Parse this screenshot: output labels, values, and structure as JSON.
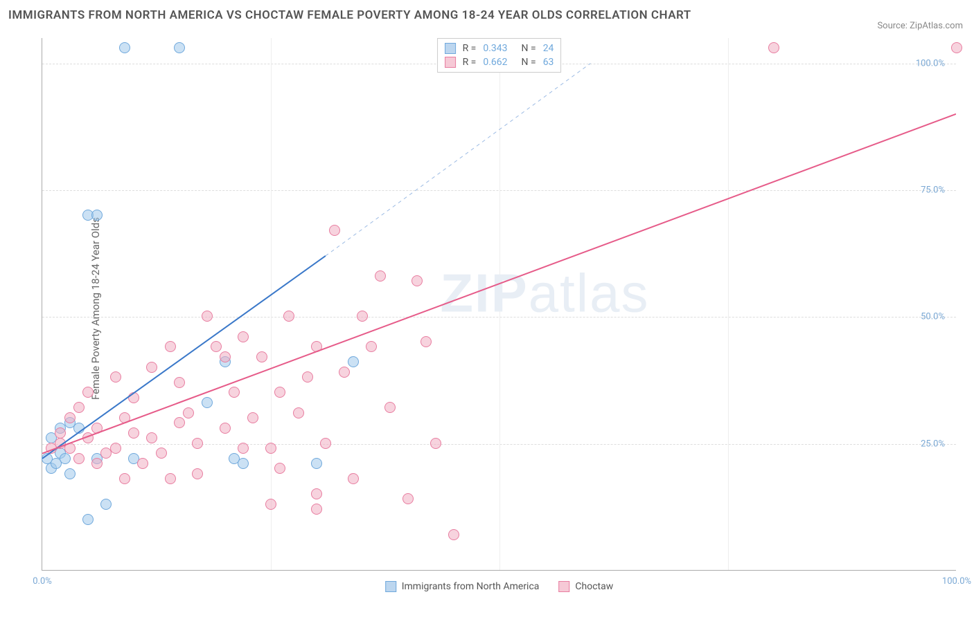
{
  "chart": {
    "type": "scatter",
    "title": "IMMIGRANTS FROM NORTH AMERICA VS CHOCTAW FEMALE POVERTY AMONG 18-24 YEAR OLDS CORRELATION CHART",
    "source_label": "Source:",
    "source_name": "ZipAtlas.com",
    "ylabel": "Female Poverty Among 18-24 Year Olds",
    "watermark_bold": "ZIP",
    "watermark_light": "atlas",
    "background_color": "#ffffff",
    "grid_color": "#dddddd",
    "axis_color": "#aaaaaa",
    "tick_color": "#7aa8d4",
    "xlim": [
      0,
      100
    ],
    "ylim": [
      0,
      105
    ],
    "xticks": [
      {
        "v": 0,
        "label": "0.0%"
      },
      {
        "v": 25,
        "label": ""
      },
      {
        "v": 50,
        "label": ""
      },
      {
        "v": 75,
        "label": ""
      },
      {
        "v": 100,
        "label": "100.0%"
      }
    ],
    "yticks": [
      {
        "v": 25,
        "label": "25.0%"
      },
      {
        "v": 50,
        "label": "50.0%"
      },
      {
        "v": 75,
        "label": "75.0%"
      },
      {
        "v": 100,
        "label": "100.0%"
      }
    ],
    "legend_top": {
      "rows": [
        {
          "swatch_fill": "#bcd6ef",
          "swatch_border": "#6fa8dc",
          "r_label": "R =",
          "r_value": "0.343",
          "n_label": "N =",
          "n_value": "24"
        },
        {
          "swatch_fill": "#f6c9d6",
          "swatch_border": "#e87da0",
          "r_label": "R =",
          "r_value": "0.662",
          "n_label": "N =",
          "n_value": "63"
        }
      ]
    },
    "legend_bottom": [
      {
        "swatch_fill": "#bcd6ef",
        "swatch_border": "#6fa8dc",
        "label": "Immigrants from North America"
      },
      {
        "swatch_fill": "#f6c9d6",
        "swatch_border": "#e87da0",
        "label": "Choctaw"
      }
    ],
    "series": [
      {
        "name": "Immigrants from North America",
        "marker_fill": "rgba(160,200,235,0.55)",
        "marker_border": "#6fa8dc",
        "marker_size": 16,
        "trend": {
          "x1": 0,
          "y1": 22,
          "x2": 31,
          "y2": 62,
          "dash_x2": 60,
          "dash_y2": 100,
          "color": "#3a78c9",
          "width": 2
        },
        "points": [
          [
            0.5,
            22
          ],
          [
            1,
            20
          ],
          [
            1.5,
            21
          ],
          [
            2,
            23
          ],
          [
            2.5,
            22
          ],
          [
            3,
            19
          ],
          [
            1,
            26
          ],
          [
            2,
            28
          ],
          [
            3,
            29
          ],
          [
            4,
            28
          ],
          [
            5,
            70
          ],
          [
            6,
            70
          ],
          [
            5,
            10
          ],
          [
            7,
            13
          ],
          [
            10,
            22
          ],
          [
            9,
            103
          ],
          [
            15,
            103
          ],
          [
            18,
            33
          ],
          [
            20,
            41
          ],
          [
            21,
            22
          ],
          [
            22,
            21
          ],
          [
            34,
            41
          ],
          [
            30,
            21
          ],
          [
            6,
            22
          ]
        ]
      },
      {
        "name": "Choctaw",
        "marker_fill": "rgba(240,175,195,0.55)",
        "marker_border": "#e87da0",
        "marker_size": 16,
        "trend": {
          "x1": 0,
          "y1": 23,
          "x2": 100,
          "y2": 90,
          "color": "#e65b89",
          "width": 2
        },
        "points": [
          [
            1,
            24
          ],
          [
            2,
            25
          ],
          [
            2,
            27
          ],
          [
            3,
            24
          ],
          [
            3,
            30
          ],
          [
            4,
            32
          ],
          [
            4,
            22
          ],
          [
            5,
            26
          ],
          [
            5,
            35
          ],
          [
            6,
            28
          ],
          [
            6,
            21
          ],
          [
            7,
            23
          ],
          [
            8,
            24
          ],
          [
            8,
            38
          ],
          [
            9,
            30
          ],
          [
            10,
            27
          ],
          [
            10,
            34
          ],
          [
            11,
            21
          ],
          [
            12,
            26
          ],
          [
            12,
            40
          ],
          [
            13,
            23
          ],
          [
            14,
            18
          ],
          [
            15,
            29
          ],
          [
            15,
            37
          ],
          [
            16,
            31
          ],
          [
            17,
            25
          ],
          [
            18,
            50
          ],
          [
            19,
            44
          ],
          [
            20,
            42
          ],
          [
            20,
            28
          ],
          [
            21,
            35
          ],
          [
            22,
            46
          ],
          [
            22,
            24
          ],
          [
            23,
            30
          ],
          [
            24,
            42
          ],
          [
            25,
            13
          ],
          [
            25,
            24
          ],
          [
            26,
            35
          ],
          [
            27,
            50
          ],
          [
            28,
            31
          ],
          [
            29,
            38
          ],
          [
            30,
            15
          ],
          [
            30,
            44
          ],
          [
            31,
            25
          ],
          [
            32,
            67
          ],
          [
            33,
            39
          ],
          [
            34,
            18
          ],
          [
            35,
            50
          ],
          [
            36,
            44
          ],
          [
            37,
            58
          ],
          [
            38,
            32
          ],
          [
            40,
            14
          ],
          [
            41,
            57
          ],
          [
            42,
            45
          ],
          [
            43,
            25
          ],
          [
            45,
            7
          ],
          [
            30,
            12
          ],
          [
            80,
            103
          ],
          [
            100,
            103
          ],
          [
            14,
            44
          ],
          [
            9,
            18
          ],
          [
            26,
            20
          ],
          [
            17,
            19
          ]
        ]
      }
    ]
  }
}
